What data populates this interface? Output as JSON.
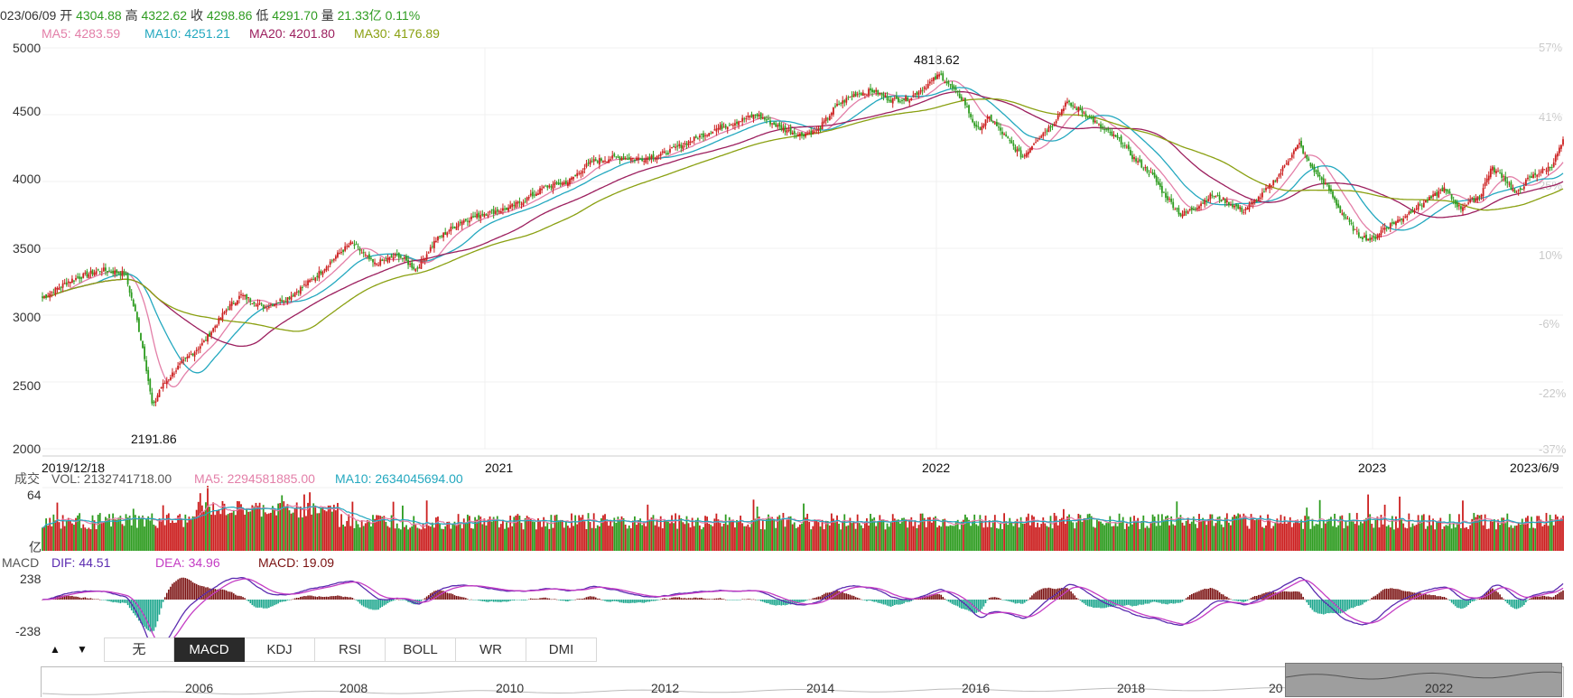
{
  "header": {
    "date": "023/06/09",
    "open_label": "开",
    "open": "4304.88",
    "high_label": "高",
    "high": "4322.62",
    "close_label": "收",
    "close": "4298.86",
    "low_label": "低",
    "low": "4291.70",
    "vol_label": "量",
    "vol": "21.33亿",
    "change": "0.11%"
  },
  "ma_legend": {
    "ma5": "MA5: 4283.59",
    "ma10": "MA10: 4251.21",
    "ma20": "MA20: 4201.80",
    "ma30": "MA30: 4176.89"
  },
  "colors": {
    "up": "#cc1f1f",
    "down": "#2e9c20",
    "ma5": "#e37fa8",
    "ma10": "#23a8bf",
    "ma20": "#9c1f5e",
    "ma30": "#8aa011",
    "dif": "#5b2bb0",
    "dea": "#c43cc4",
    "macd_pos": "#7a1010",
    "macd_neg": "#1ba68d"
  },
  "price_axis": {
    "ticks": [
      "5000",
      "4500",
      "4000",
      "3500",
      "3000",
      "2500",
      "2000"
    ],
    "pct_ticks": [
      "57%",
      "41%",
      "25%",
      "10%",
      "-6%",
      "-22%",
      "-37%"
    ]
  },
  "annotations": {
    "max": "4818.62",
    "min": "2191.86"
  },
  "date_axis": {
    "start": "2019/12/18",
    "y2021": "2021",
    "y2022": "2022",
    "y2023": "2023",
    "end": "2023/6/9"
  },
  "volume": {
    "title": "成交",
    "vol": "VOL: 2132741718.00",
    "ma5": "MA5: 2294581885.00",
    "ma10": "MA10: 2634045694.00",
    "axis_top": "64",
    "axis_unit": "亿"
  },
  "macd": {
    "title": "MACD",
    "dif": "DIF: 44.51",
    "dea": "DEA: 34.96",
    "macd": "MACD: 19.09",
    "axis_top": "238",
    "axis_bottom": "-238"
  },
  "tabs": [
    "无",
    "MACD",
    "KDJ",
    "RSI",
    "BOLL",
    "WR",
    "DMI"
  ],
  "active_tab": "MACD",
  "nav_arrows": {
    "up": "▲",
    "down": "▼"
  },
  "navigator_years": [
    "2006",
    "2008",
    "2010",
    "2012",
    "2014",
    "2016",
    "2018",
    "20",
    "2022"
  ],
  "chart_data": {
    "type": "candlestick",
    "title": "",
    "date_range": [
      "2019/12/18",
      "2023/6/9"
    ],
    "ylim": [
      2000,
      5000
    ],
    "max_price": 4818.62,
    "min_price": 2191.86,
    "close_path": [
      {
        "date": "2019/12/18",
        "price": 3130
      },
      {
        "date": "2020/01/10",
        "price": 3260
      },
      {
        "date": "2020/02/05",
        "price": 3340
      },
      {
        "date": "2020/02/25",
        "price": 3310
      },
      {
        "date": "2020/03/05",
        "price": 3000
      },
      {
        "date": "2020/03/12",
        "price": 2700
      },
      {
        "date": "2020/03/19",
        "price": 2300
      },
      {
        "date": "2020/03/25",
        "price": 2450
      },
      {
        "date": "2020/04/10",
        "price": 2620
      },
      {
        "date": "2020/05/01",
        "price": 2800
      },
      {
        "date": "2020/05/20",
        "price": 3050
      },
      {
        "date": "2020/06/01",
        "price": 3150
      },
      {
        "date": "2020/06/20",
        "price": 3060
      },
      {
        "date": "2020/07/10",
        "price": 3130
      },
      {
        "date": "2020/08/01",
        "price": 3280
      },
      {
        "date": "2020/08/20",
        "price": 3450
      },
      {
        "date": "2020/09/01",
        "price": 3540
      },
      {
        "date": "2020/09/20",
        "price": 3380
      },
      {
        "date": "2020/10/10",
        "price": 3450
      },
      {
        "date": "2020/10/25",
        "price": 3340
      },
      {
        "date": "2020/11/10",
        "price": 3560
      },
      {
        "date": "2020/12/01",
        "price": 3700
      },
      {
        "date": "2020/12/20",
        "price": 3760
      },
      {
        "date": "2021/01/10",
        "price": 3800
      },
      {
        "date": "2021/01/25",
        "price": 3870
      },
      {
        "date": "2021/02/10",
        "price": 3960
      },
      {
        "date": "2021/03/01",
        "price": 4000
      },
      {
        "date": "2021/03/20",
        "price": 4150
      },
      {
        "date": "2021/04/10",
        "price": 4180
      },
      {
        "date": "2021/05/01",
        "price": 4170
      },
      {
        "date": "2021/05/20",
        "price": 4210
      },
      {
        "date": "2021/06/10",
        "price": 4300
      },
      {
        "date": "2021/07/01",
        "price": 4390
      },
      {
        "date": "2021/07/20",
        "price": 4450
      },
      {
        "date": "2021/08/05",
        "price": 4500
      },
      {
        "date": "2021/08/25",
        "price": 4400
      },
      {
        "date": "2021/09/10",
        "price": 4350
      },
      {
        "date": "2021/09/25",
        "price": 4380
      },
      {
        "date": "2021/10/10",
        "price": 4560
      },
      {
        "date": "2021/10/25",
        "price": 4650
      },
      {
        "date": "2021/11/10",
        "price": 4680
      },
      {
        "date": "2021/11/25",
        "price": 4610
      },
      {
        "date": "2021/12/10",
        "price": 4620
      },
      {
        "date": "2021/12/25",
        "price": 4720
      },
      {
        "date": "2022/01/05",
        "price": 4800
      },
      {
        "date": "2022/01/15",
        "price": 4700
      },
      {
        "date": "2022/01/25",
        "price": 4600
      },
      {
        "date": "2022/02/05",
        "price": 4380
      },
      {
        "date": "2022/02/15",
        "price": 4480
      },
      {
        "date": "2022/03/01",
        "price": 4330
      },
      {
        "date": "2022/03/15",
        "price": 4180
      },
      {
        "date": "2022/03/25",
        "price": 4300
      },
      {
        "date": "2022/04/10",
        "price": 4440
      },
      {
        "date": "2022/04/20",
        "price": 4590
      },
      {
        "date": "2022/05/05",
        "price": 4520
      },
      {
        "date": "2022/05/20",
        "price": 4400
      },
      {
        "date": "2022/06/05",
        "price": 4300
      },
      {
        "date": "2022/06/15",
        "price": 4180
      },
      {
        "date": "2022/07/01",
        "price": 4050
      },
      {
        "date": "2022/07/10",
        "price": 3920
      },
      {
        "date": "2022/07/25",
        "price": 3750
      },
      {
        "date": "2022/08/05",
        "price": 3800
      },
      {
        "date": "2022/08/20",
        "price": 3900
      },
      {
        "date": "2022/09/01",
        "price": 3850
      },
      {
        "date": "2022/09/15",
        "price": 3780
      },
      {
        "date": "2022/10/01",
        "price": 3900
      },
      {
        "date": "2022/10/15",
        "price": 4050
      },
      {
        "date": "2022/10/25",
        "price": 4200
      },
      {
        "date": "2022/11/01",
        "price": 4280
      },
      {
        "date": "2022/11/10",
        "price": 4120
      },
      {
        "date": "2022/11/25",
        "price": 3950
      },
      {
        "date": "2022/12/05",
        "price": 3780
      },
      {
        "date": "2022/12/20",
        "price": 3600
      },
      {
        "date": "2023/01/01",
        "price": 3560
      },
      {
        "date": "2023/01/10",
        "price": 3650
      },
      {
        "date": "2023/01/25",
        "price": 3720
      },
      {
        "date": "2023/02/05",
        "price": 3800
      },
      {
        "date": "2023/02/20",
        "price": 3880
      },
      {
        "date": "2023/03/01",
        "price": 3950
      },
      {
        "date": "2023/03/15",
        "price": 3800
      },
      {
        "date": "2023/04/01",
        "price": 3900
      },
      {
        "date": "2023/04/10",
        "price": 4100
      },
      {
        "date": "2023/04/20",
        "price": 4040
      },
      {
        "date": "2023/05/01",
        "price": 3900
      },
      {
        "date": "2023/05/10",
        "price": 4010
      },
      {
        "date": "2023/05/20",
        "price": 4070
      },
      {
        "date": "2023/05/30",
        "price": 4110
      },
      {
        "date": "2023/06/09",
        "price": 4298.86
      }
    ],
    "macd_range": [
      -238,
      238
    ]
  }
}
